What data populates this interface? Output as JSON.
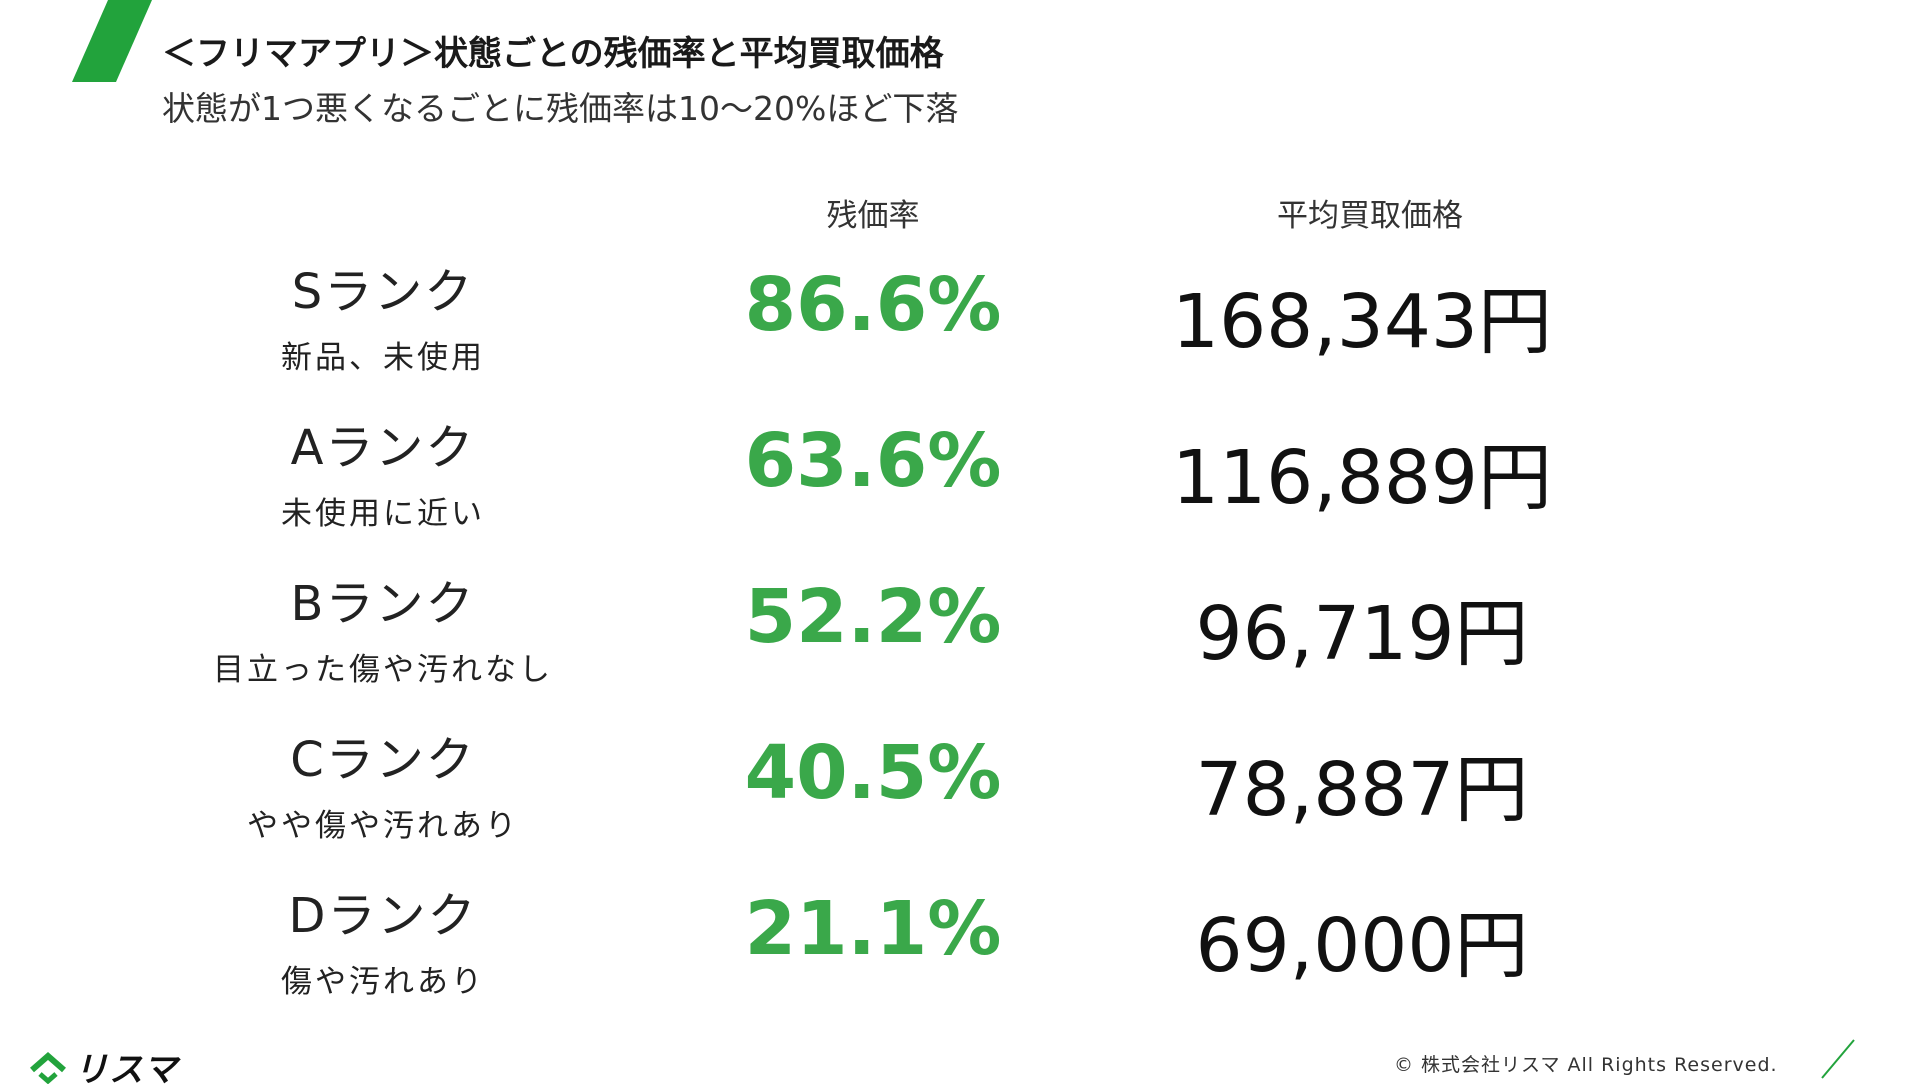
{
  "header": {
    "title": "＜フリマアプリ＞状態ごとの残価率と平均買取価格",
    "subtitle": "状態が1つ悪くなるごとに残価率は10〜20%ほど下落"
  },
  "table": {
    "columns": {
      "rate": "残価率",
      "price": "平均買取価格"
    },
    "rows": [
      {
        "rank": "Sランク",
        "desc": "新品、未使用",
        "rate": "86.6%",
        "price": "168,343円"
      },
      {
        "rank": "Aランク",
        "desc": "未使用に近い",
        "rate": "63.6%",
        "price": "116,889円"
      },
      {
        "rank": "Bランク",
        "desc": "目立った傷や汚れなし",
        "rate": "52.2%",
        "price": "96,719円"
      },
      {
        "rank": "Cランク",
        "desc": "やや傷や汚れあり",
        "rate": "40.5%",
        "price": "78,887円"
      },
      {
        "rank": "Dランク",
        "desc": "傷や汚れあり",
        "rate": "21.1%",
        "price": "69,000円"
      }
    ]
  },
  "footer": {
    "logo_text": "リスマ",
    "logo_icon": "house-arrow-icon",
    "copyright": "© 株式会社リスマ All Rights Reserved."
  },
  "colors": {
    "accent_green": "#22a33c",
    "rate_green": "#3aa84a"
  }
}
